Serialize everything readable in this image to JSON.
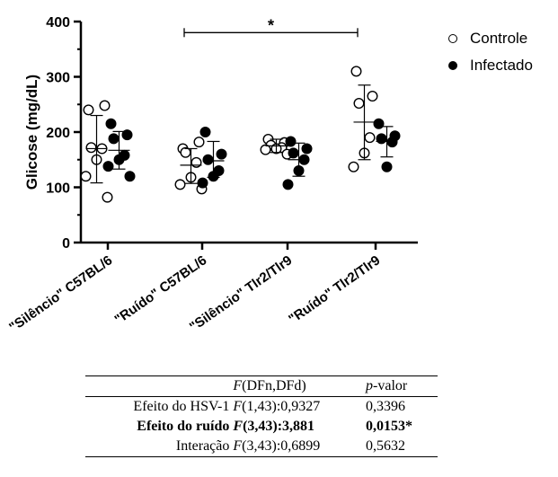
{
  "chart_data": {
    "type": "scatter",
    "ylabel": "Glicose (mg/dL)",
    "ylim": [
      0,
      400
    ],
    "yticks": [
      0,
      100,
      200,
      300,
      400
    ],
    "categories": [
      "\"Silêncio\" C57BL/6",
      "\"Ruído\" C57BL/6",
      "\"Silêncio\" Tlr2/Tlr9",
      "\"Ruído\" Tlr2/Tlr9"
    ],
    "series": [
      {
        "name": "Controle",
        "marker": "open-circle",
        "values": [
          [
            240,
            248,
            172,
            170,
            150,
            120,
            82
          ],
          [
            170,
            182,
            163,
            145,
            118,
            105,
            97
          ],
          [
            187,
            181,
            176,
            172,
            170,
            168,
            160
          ],
          [
            310,
            265,
            252,
            190,
            162,
            137
          ]
        ],
        "mean": [
          170,
          140,
          175,
          218
        ],
        "err_low": [
          108,
          107,
          163,
          150
        ],
        "err_high": [
          230,
          170,
          187,
          285
        ]
      },
      {
        "name": "Infectado",
        "marker": "filled-circle",
        "values": [
          [
            215,
            195,
            188,
            158,
            150,
            138,
            120
          ],
          [
            200,
            160,
            150,
            130,
            120,
            108
          ],
          [
            183,
            170,
            162,
            150,
            130,
            105
          ],
          [
            215,
            193,
            188,
            182,
            137
          ]
        ],
        "mean": [
          167,
          148,
          150,
          183
        ],
        "err_low": [
          133,
          118,
          120,
          155
        ],
        "err_high": [
          201,
          183,
          180,
          210
        ]
      }
    ],
    "significance": [
      {
        "from_category": 1,
        "to_category": 3,
        "label": "*",
        "y": 380
      }
    ],
    "legend_position": "top-right"
  },
  "stats_table": {
    "header_f": "(DFn,DFd)",
    "header_p": "-valor",
    "rows": [
      {
        "label": "Efeito do HSV-1",
        "f": "(1,43):0,9327",
        "p": "0,3396",
        "bold": false
      },
      {
        "label": "Efeito do ruído",
        "f": "(3,43):3,881",
        "p": "0,0153*",
        "bold": true
      },
      {
        "label": "Interação",
        "f": "(3,43):0,6899",
        "p": "0,5632",
        "bold": false
      }
    ]
  }
}
